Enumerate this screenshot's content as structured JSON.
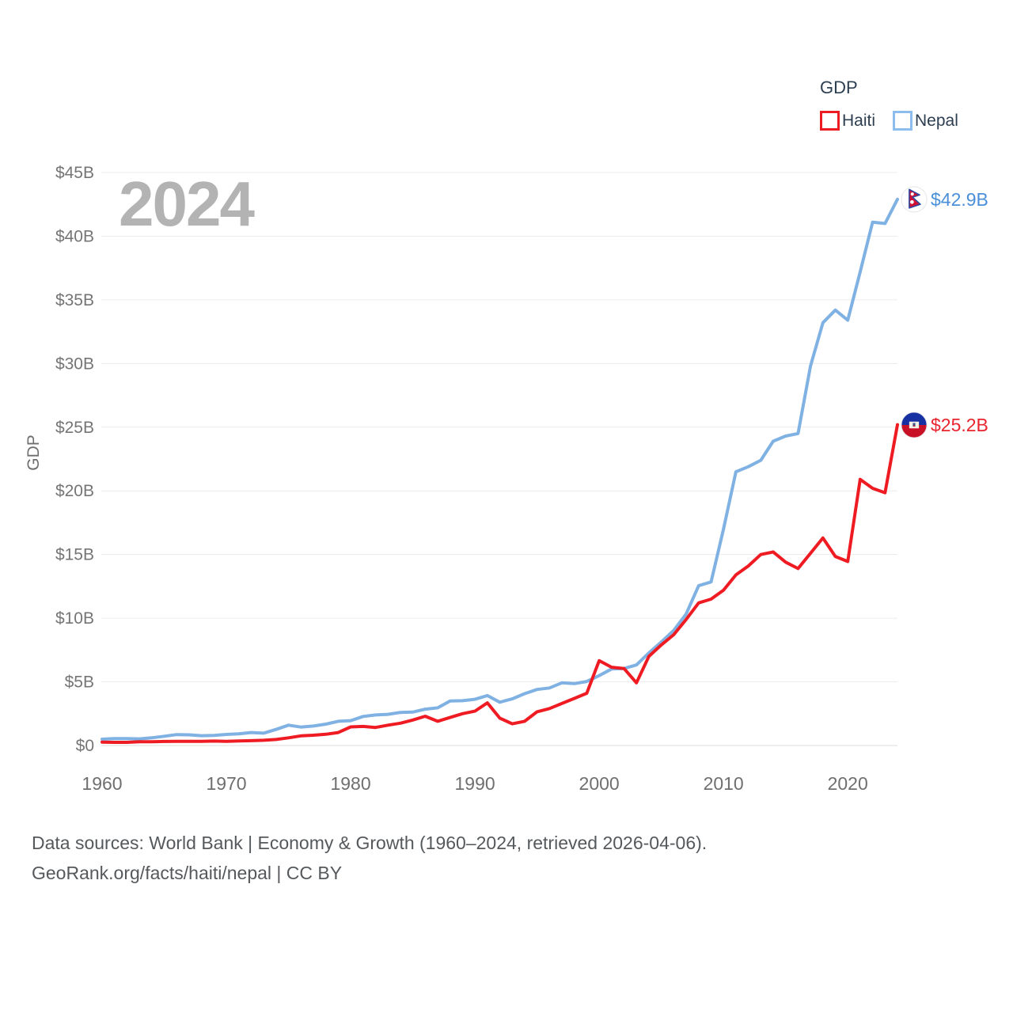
{
  "watermark": "2024",
  "y_axis_title": "GDP",
  "legend": {
    "title": "GDP",
    "items": [
      {
        "label": "Haiti",
        "color": "#ec1c24"
      },
      {
        "label": "Nepal",
        "color": "#8cbdec"
      }
    ]
  },
  "end_labels": [
    {
      "series": "Nepal",
      "text": "$42.9B",
      "color": "#4a90d9",
      "icon": "nepal-flag-icon"
    },
    {
      "series": "Haiti",
      "text": "$25.2B",
      "color": "#e8242e",
      "icon": "haiti-flag-icon"
    }
  ],
  "footer": {
    "line1": "Data sources: World Bank | Economy & Growth (1960–2024, retrieved 2026-04-06).",
    "line2": "GeoRank.org/facts/haiti/nepal | CC BY"
  },
  "chart_data": {
    "type": "line",
    "title": "GDP",
    "xlabel": "",
    "ylabel": "GDP",
    "x_range": [
      1960,
      2024
    ],
    "ylim": [
      0,
      45
    ],
    "y_tick_step": 5,
    "y_ticks": [
      "$0",
      "$5B",
      "$10B",
      "$15B",
      "$20B",
      "$25B",
      "$30B",
      "$35B",
      "$40B",
      "$45B"
    ],
    "x_ticks": [
      1960,
      1970,
      1980,
      1990,
      2000,
      2010,
      2020
    ],
    "grid": "horizontal",
    "legend_position": "top-right",
    "series": [
      {
        "name": "Haiti",
        "color": "#ef1b23",
        "values": [
          0.27,
          0.25,
          0.25,
          0.29,
          0.3,
          0.32,
          0.33,
          0.33,
          0.33,
          0.35,
          0.33,
          0.36,
          0.38,
          0.41,
          0.47,
          0.6,
          0.76,
          0.81,
          0.88,
          1.02,
          1.46,
          1.5,
          1.42,
          1.6,
          1.75,
          2.0,
          2.3,
          1.9,
          2.2,
          2.5,
          2.7,
          3.35,
          2.15,
          1.7,
          1.9,
          2.65,
          2.9,
          3.3,
          3.7,
          4.1,
          6.66,
          6.15,
          6.05,
          4.92,
          7.0,
          7.9,
          8.7,
          9.9,
          11.2,
          11.5,
          12.2,
          13.4,
          14.1,
          15.0,
          15.2,
          14.4,
          13.9,
          15.1,
          16.3,
          14.85,
          14.45,
          20.9,
          20.2,
          19.85,
          25.2
        ]
      },
      {
        "name": "Nepal",
        "color": "#7fb1e3",
        "values": [
          0.5,
          0.54,
          0.55,
          0.52,
          0.6,
          0.73,
          0.86,
          0.84,
          0.77,
          0.79,
          0.87,
          0.92,
          1.02,
          0.97,
          1.26,
          1.6,
          1.45,
          1.53,
          1.68,
          1.9,
          1.95,
          2.28,
          2.4,
          2.45,
          2.6,
          2.62,
          2.85,
          2.96,
          3.49,
          3.52,
          3.63,
          3.92,
          3.4,
          3.66,
          4.07,
          4.4,
          4.52,
          4.92,
          4.86,
          5.03,
          5.49,
          6.01,
          6.05,
          6.33,
          7.27,
          8.13,
          9.04,
          10.33,
          12.55,
          12.85,
          17.0,
          21.5,
          21.9,
          22.4,
          23.9,
          24.3,
          24.5,
          29.8,
          33.2,
          34.2,
          33.4,
          37.2,
          41.1,
          41.0,
          42.9
        ]
      }
    ]
  }
}
